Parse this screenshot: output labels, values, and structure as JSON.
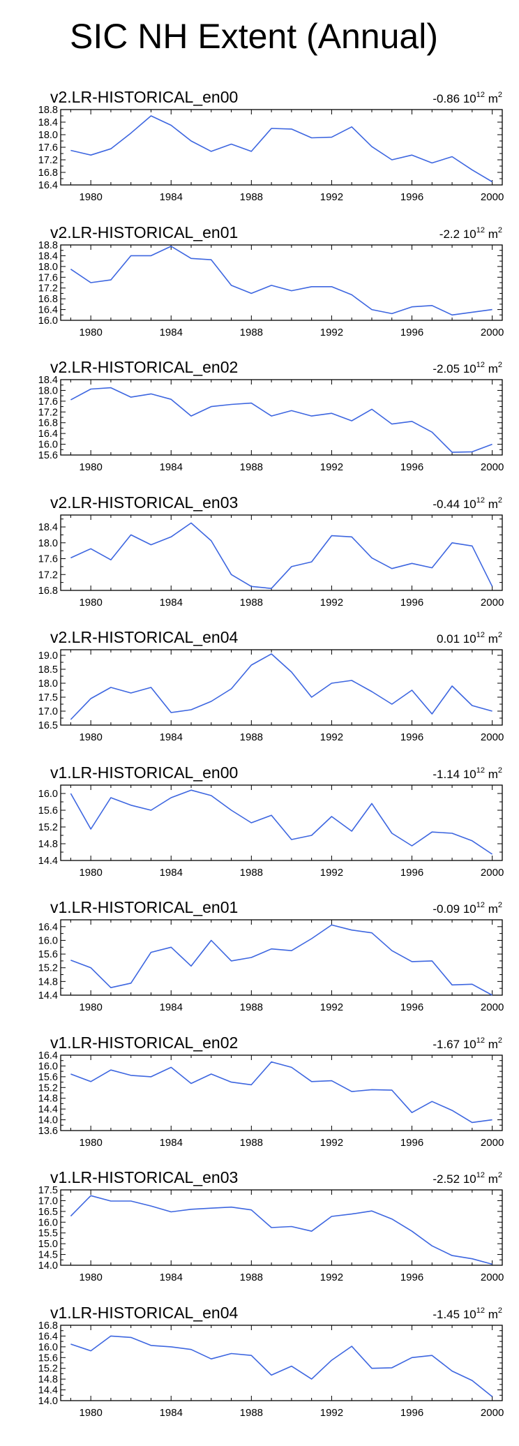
{
  "figure": {
    "title": "SIC NH Extent (Annual)",
    "line_color": "#3d66e0"
  },
  "chart_data": [
    {
      "type": "line",
      "title": "v2.LR-HISTORICAL_en00",
      "trend": {
        "value": "-0.86",
        "exponent": "12",
        "unit_base": "10",
        "unit": "m",
        "unit_exponent": "2"
      },
      "x_ticks": [
        1980,
        1984,
        1988,
        1992,
        1996,
        2000
      ],
      "y_ticks": [
        16.4,
        16.8,
        17.2,
        17.6,
        18.0,
        18.4,
        18.8
      ],
      "ylim": [
        16.4,
        18.8
      ],
      "xlim": [
        1978.5,
        2000.5
      ],
      "series": [
        {
          "x": [
            1979,
            1980,
            1981,
            1982,
            1983,
            1984,
            1985,
            1986,
            1987,
            1988,
            1989,
            1990,
            1991,
            1992,
            1993,
            1994,
            1995,
            1996,
            1997,
            1998,
            1999,
            2000
          ],
          "values": [
            17.5,
            17.35,
            17.55,
            18.05,
            18.6,
            18.3,
            17.8,
            17.47,
            17.7,
            17.47,
            18.2,
            18.18,
            17.9,
            17.92,
            18.25,
            17.62,
            17.2,
            17.35,
            17.1,
            17.3,
            16.88,
            16.5
          ]
        }
      ]
    },
    {
      "type": "line",
      "title": "v2.LR-HISTORICAL_en01",
      "trend": {
        "value": "-2.2",
        "exponent": "12",
        "unit_base": "10",
        "unit": "m",
        "unit_exponent": "2"
      },
      "x_ticks": [
        1980,
        1984,
        1988,
        1992,
        1996,
        2000
      ],
      "y_ticks": [
        16.0,
        16.4,
        16.8,
        17.2,
        17.6,
        18.0,
        18.4,
        18.8
      ],
      "ylim": [
        16.0,
        18.8
      ],
      "xlim": [
        1978.5,
        2000.5
      ],
      "series": [
        {
          "x": [
            1979,
            1980,
            1981,
            1982,
            1983,
            1984,
            1985,
            1986,
            1987,
            1988,
            1989,
            1990,
            1991,
            1992,
            1993,
            1994,
            1995,
            1996,
            1997,
            1998,
            1999,
            2000
          ],
          "values": [
            17.9,
            17.4,
            17.5,
            18.4,
            18.4,
            18.75,
            18.3,
            18.25,
            17.3,
            17.0,
            17.3,
            17.1,
            17.25,
            17.25,
            16.95,
            16.4,
            16.25,
            16.5,
            16.55,
            16.2,
            16.3,
            16.4
          ]
        }
      ]
    },
    {
      "type": "line",
      "title": "v2.LR-HISTORICAL_en02",
      "trend": {
        "value": "-2.05",
        "exponent": "12",
        "unit_base": "10",
        "unit": "m",
        "unit_exponent": "2"
      },
      "x_ticks": [
        1980,
        1984,
        1988,
        1992,
        1996,
        2000
      ],
      "y_ticks": [
        15.6,
        16.0,
        16.4,
        16.8,
        17.2,
        17.6,
        18.0,
        18.4
      ],
      "ylim": [
        15.6,
        18.4
      ],
      "xlim": [
        1978.5,
        2000.5
      ],
      "series": [
        {
          "x": [
            1979,
            1980,
            1981,
            1982,
            1983,
            1984,
            1985,
            1986,
            1987,
            1988,
            1989,
            1990,
            1991,
            1992,
            1993,
            1994,
            1995,
            1996,
            1997,
            1998,
            1999,
            2000
          ],
          "values": [
            17.65,
            18.05,
            18.1,
            17.75,
            17.87,
            17.67,
            17.05,
            17.4,
            17.48,
            17.53,
            17.05,
            17.25,
            17.05,
            17.15,
            16.87,
            17.3,
            16.75,
            16.85,
            16.45,
            15.7,
            15.72,
            16.0
          ]
        }
      ]
    },
    {
      "type": "line",
      "title": "v2.LR-HISTORICAL_en03",
      "trend": {
        "value": "-0.44",
        "exponent": "12",
        "unit_base": "10",
        "unit": "m",
        "unit_exponent": "2"
      },
      "x_ticks": [
        1980,
        1984,
        1988,
        1992,
        1996,
        2000
      ],
      "y_ticks": [
        16.8,
        17.2,
        17.6,
        18.0,
        18.4
      ],
      "ylim": [
        16.8,
        18.7
      ],
      "xlim": [
        1978.5,
        2000.5
      ],
      "series": [
        {
          "x": [
            1979,
            1980,
            1981,
            1982,
            1983,
            1984,
            1985,
            1986,
            1987,
            1988,
            1989,
            1990,
            1991,
            1992,
            1993,
            1994,
            1995,
            1996,
            1997,
            1998,
            1999,
            2000
          ],
          "values": [
            17.62,
            17.85,
            17.57,
            18.2,
            17.95,
            18.15,
            18.5,
            18.05,
            17.2,
            16.9,
            16.85,
            17.4,
            17.52,
            18.18,
            18.15,
            17.62,
            17.35,
            17.48,
            17.37,
            18.0,
            17.92,
            16.9
          ]
        }
      ]
    },
    {
      "type": "line",
      "title": "v2.LR-HISTORICAL_en04",
      "trend": {
        "value": "0.01",
        "exponent": "12",
        "unit_base": "10",
        "unit": "m",
        "unit_exponent": "2"
      },
      "x_ticks": [
        1980,
        1984,
        1988,
        1992,
        1996,
        2000
      ],
      "y_ticks": [
        16.5,
        17.0,
        17.5,
        18.0,
        18.5,
        19.0
      ],
      "ylim": [
        16.5,
        19.2
      ],
      "xlim": [
        1978.5,
        2000.5
      ],
      "series": [
        {
          "x": [
            1979,
            1980,
            1981,
            1982,
            1983,
            1984,
            1985,
            1986,
            1987,
            1988,
            1989,
            1990,
            1991,
            1992,
            1993,
            1994,
            1995,
            1996,
            1997,
            1998,
            1999,
            2000
          ],
          "values": [
            16.7,
            17.45,
            17.85,
            17.65,
            17.85,
            16.95,
            17.05,
            17.35,
            17.8,
            18.65,
            19.05,
            18.4,
            17.5,
            18.0,
            18.1,
            17.7,
            17.25,
            17.75,
            16.9,
            17.9,
            17.2,
            17.0
          ]
        }
      ]
    },
    {
      "type": "line",
      "title": "v1.LR-HISTORICAL_en00",
      "trend": {
        "value": "-1.14",
        "exponent": "12",
        "unit_base": "10",
        "unit": "m",
        "unit_exponent": "2"
      },
      "x_ticks": [
        1980,
        1984,
        1988,
        1992,
        1996,
        2000
      ],
      "y_ticks": [
        14.4,
        14.8,
        15.2,
        15.6,
        16.0
      ],
      "ylim": [
        14.4,
        16.2
      ],
      "xlim": [
        1978.5,
        2000.5
      ],
      "series": [
        {
          "x": [
            1979,
            1980,
            1981,
            1982,
            1983,
            1984,
            1985,
            1986,
            1987,
            1988,
            1989,
            1990,
            1991,
            1992,
            1993,
            1994,
            1995,
            1996,
            1997,
            1998,
            1999,
            2000
          ],
          "values": [
            16.0,
            15.15,
            15.9,
            15.72,
            15.6,
            15.9,
            16.08,
            15.95,
            15.6,
            15.3,
            15.48,
            14.9,
            15.0,
            15.45,
            15.1,
            15.76,
            15.05,
            14.75,
            15.08,
            15.05,
            14.87,
            14.55
          ]
        }
      ]
    },
    {
      "type": "line",
      "title": "v1.LR-HISTORICAL_en01",
      "trend": {
        "value": "-0.09",
        "exponent": "12",
        "unit_base": "10",
        "unit": "m",
        "unit_exponent": "2"
      },
      "x_ticks": [
        1980,
        1984,
        1988,
        1992,
        1996,
        2000
      ],
      "y_ticks": [
        14.4,
        14.8,
        15.2,
        15.6,
        16.0,
        16.4
      ],
      "ylim": [
        14.4,
        16.6
      ],
      "xlim": [
        1978.5,
        2000.5
      ],
      "series": [
        {
          "x": [
            1979,
            1980,
            1981,
            1982,
            1983,
            1984,
            1985,
            1986,
            1987,
            1988,
            1989,
            1990,
            1991,
            1992,
            1993,
            1994,
            1995,
            1996,
            1997,
            1998,
            1999,
            2000
          ],
          "values": [
            15.42,
            15.2,
            14.62,
            14.75,
            15.65,
            15.8,
            15.25,
            16.0,
            15.4,
            15.5,
            15.75,
            15.7,
            16.05,
            16.45,
            16.3,
            16.22,
            15.7,
            15.38,
            15.4,
            14.7,
            14.72,
            14.4
          ]
        }
      ]
    },
    {
      "type": "line",
      "title": "v1.LR-HISTORICAL_en02",
      "trend": {
        "value": "-1.67",
        "exponent": "12",
        "unit_base": "10",
        "unit": "m",
        "unit_exponent": "2"
      },
      "x_ticks": [
        1980,
        1984,
        1988,
        1992,
        1996,
        2000
      ],
      "y_ticks": [
        13.6,
        14.0,
        14.4,
        14.8,
        15.2,
        15.6,
        16.0,
        16.4
      ],
      "ylim": [
        13.6,
        16.4
      ],
      "xlim": [
        1978.5,
        2000.5
      ],
      "series": [
        {
          "x": [
            1979,
            1980,
            1981,
            1982,
            1983,
            1984,
            1985,
            1986,
            1987,
            1988,
            1989,
            1990,
            1991,
            1992,
            1993,
            1994,
            1995,
            1996,
            1997,
            1998,
            1999,
            2000
          ],
          "values": [
            15.7,
            15.42,
            15.85,
            15.65,
            15.6,
            15.95,
            15.35,
            15.7,
            15.4,
            15.3,
            16.15,
            15.95,
            15.42,
            15.45,
            15.05,
            15.12,
            15.1,
            14.27,
            14.68,
            14.35,
            13.9,
            14.0
          ]
        }
      ]
    },
    {
      "type": "line",
      "title": "v1.LR-HISTORICAL_en03",
      "trend": {
        "value": "-2.52",
        "exponent": "12",
        "unit_base": "10",
        "unit": "m",
        "unit_exponent": "2"
      },
      "x_ticks": [
        1980,
        1984,
        1988,
        1992,
        1996,
        2000
      ],
      "y_ticks": [
        14.0,
        14.5,
        15.0,
        15.5,
        16.0,
        16.5,
        17.0,
        17.5
      ],
      "ylim": [
        14.0,
        17.5
      ],
      "xlim": [
        1978.5,
        2000.5
      ],
      "series": [
        {
          "x": [
            1979,
            1980,
            1981,
            1982,
            1983,
            1984,
            1985,
            1986,
            1987,
            1988,
            1989,
            1990,
            1991,
            1992,
            1993,
            1994,
            1995,
            1996,
            1997,
            1998,
            1999,
            2000
          ],
          "values": [
            16.28,
            17.23,
            16.98,
            16.98,
            16.75,
            16.48,
            16.6,
            16.65,
            16.7,
            16.57,
            15.75,
            15.8,
            15.58,
            16.27,
            16.38,
            16.52,
            16.15,
            15.58,
            14.9,
            14.45,
            14.3,
            14.05
          ]
        }
      ]
    },
    {
      "type": "line",
      "title": "v1.LR-HISTORICAL_en04",
      "trend": {
        "value": "-1.45",
        "exponent": "12",
        "unit_base": "10",
        "unit": "m",
        "unit_exponent": "2"
      },
      "x_ticks": [
        1980,
        1984,
        1988,
        1992,
        1996,
        2000
      ],
      "y_ticks": [
        14.0,
        14.4,
        14.8,
        15.2,
        15.6,
        16.0,
        16.4,
        16.8
      ],
      "ylim": [
        14.0,
        16.8
      ],
      "xlim": [
        1978.5,
        2000.5
      ],
      "series": [
        {
          "x": [
            1979,
            1980,
            1981,
            1982,
            1983,
            1984,
            1985,
            1986,
            1987,
            1988,
            1989,
            1990,
            1991,
            1992,
            1993,
            1994,
            1995,
            1996,
            1997,
            1998,
            1999,
            2000
          ],
          "values": [
            16.1,
            15.85,
            16.4,
            16.35,
            16.05,
            16.0,
            15.9,
            15.55,
            15.75,
            15.68,
            14.95,
            15.28,
            14.8,
            15.5,
            16.02,
            15.2,
            15.22,
            15.6,
            15.68,
            15.1,
            14.75,
            14.15
          ]
        }
      ]
    }
  ]
}
